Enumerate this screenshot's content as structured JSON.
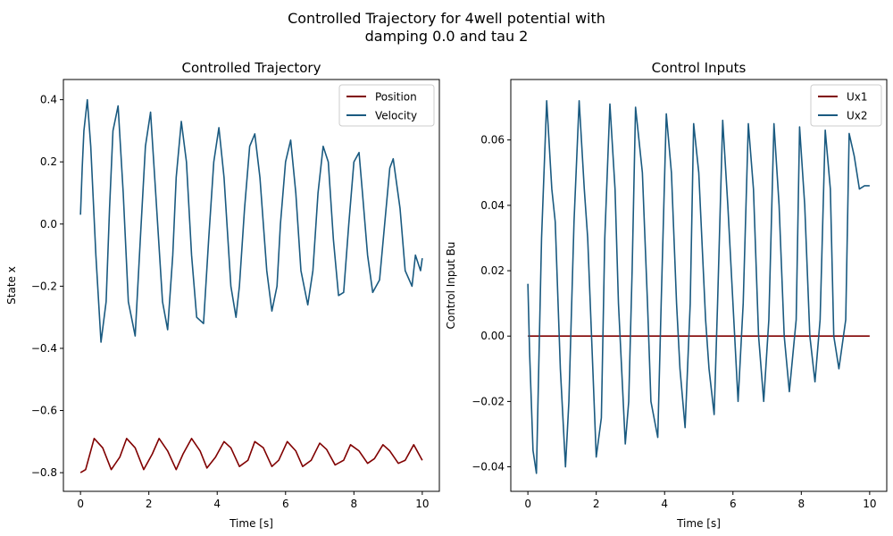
{
  "figure": {
    "suptitle_line1": "Controlled Trajectory for 4well potential with",
    "suptitle_line2": "damping 0.0 and tau 2"
  },
  "chart_data": [
    {
      "type": "line",
      "title": "Controlled Trajectory",
      "xlabel": "Time [s]",
      "ylabel": "State x",
      "xlim": [
        -0.5,
        10.5
      ],
      "ylim": [
        -0.86,
        0.465
      ],
      "xticks": [
        0,
        2,
        4,
        6,
        8,
        10
      ],
      "yticks": [
        -0.8,
        -0.6,
        -0.4,
        -0.2,
        0.0,
        0.2,
        0.4
      ],
      "ytick_labels": [
        "−0.8",
        "−0.6",
        "−0.4",
        "−0.2",
        "0.0",
        "0.2",
        "0.4"
      ],
      "grid": false,
      "legend": "top-right",
      "series": [
        {
          "name": "Position",
          "color": "#800000",
          "x": [
            0,
            0.15,
            0.4,
            0.65,
            0.9,
            1.15,
            1.35,
            1.6,
            1.85,
            2.1,
            2.3,
            2.55,
            2.8,
            3.0,
            3.25,
            3.5,
            3.7,
            3.95,
            4.2,
            4.4,
            4.65,
            4.9,
            5.1,
            5.35,
            5.6,
            5.8,
            6.05,
            6.3,
            6.5,
            6.75,
            7.0,
            7.2,
            7.45,
            7.7,
            7.9,
            8.15,
            8.4,
            8.6,
            8.85,
            9.05,
            9.3,
            9.5,
            9.75,
            10.0
          ],
          "y": [
            -0.8,
            -0.79,
            -0.69,
            -0.72,
            -0.79,
            -0.75,
            -0.69,
            -0.72,
            -0.79,
            -0.74,
            -0.69,
            -0.73,
            -0.79,
            -0.74,
            -0.69,
            -0.73,
            -0.785,
            -0.75,
            -0.7,
            -0.72,
            -0.78,
            -0.76,
            -0.7,
            -0.72,
            -0.78,
            -0.76,
            -0.7,
            -0.73,
            -0.78,
            -0.76,
            -0.705,
            -0.725,
            -0.775,
            -0.76,
            -0.71,
            -0.73,
            -0.77,
            -0.755,
            -0.71,
            -0.73,
            -0.77,
            -0.76,
            -0.71,
            -0.76
          ]
        },
        {
          "name": "Velocity",
          "color": "#1a5a80",
          "x": [
            0,
            0.05,
            0.1,
            0.2,
            0.3,
            0.45,
            0.6,
            0.75,
            0.85,
            0.95,
            1.1,
            1.25,
            1.4,
            1.6,
            1.75,
            1.9,
            2.05,
            2.2,
            2.4,
            2.55,
            2.7,
            2.8,
            2.95,
            3.1,
            3.25,
            3.4,
            3.6,
            3.75,
            3.9,
            4.05,
            4.2,
            4.4,
            4.55,
            4.65,
            4.8,
            4.95,
            5.1,
            5.25,
            5.45,
            5.6,
            5.75,
            5.85,
            6.0,
            6.15,
            6.3,
            6.45,
            6.65,
            6.8,
            6.95,
            7.1,
            7.25,
            7.4,
            7.55,
            7.7,
            7.85,
            8.0,
            8.15,
            8.25,
            8.4,
            8.55,
            8.75,
            8.9,
            9.05,
            9.15,
            9.35,
            9.5,
            9.7,
            9.8,
            9.95,
            10.0
          ],
          "y": [
            0.03,
            0.18,
            0.3,
            0.4,
            0.25,
            -0.1,
            -0.38,
            -0.25,
            0.05,
            0.3,
            0.38,
            0.1,
            -0.25,
            -0.36,
            -0.05,
            0.25,
            0.36,
            0.1,
            -0.25,
            -0.34,
            -0.1,
            0.15,
            0.33,
            0.2,
            -0.1,
            -0.3,
            -0.32,
            -0.05,
            0.2,
            0.31,
            0.15,
            -0.2,
            -0.3,
            -0.2,
            0.05,
            0.25,
            0.29,
            0.15,
            -0.15,
            -0.28,
            -0.2,
            0.0,
            0.2,
            0.27,
            0.1,
            -0.15,
            -0.26,
            -0.15,
            0.1,
            0.25,
            0.2,
            -0.05,
            -0.23,
            -0.22,
            0.0,
            0.2,
            0.23,
            0.1,
            -0.1,
            -0.22,
            -0.18,
            0.0,
            0.18,
            0.21,
            0.05,
            -0.15,
            -0.2,
            -0.1,
            -0.15,
            -0.11
          ]
        }
      ]
    },
    {
      "type": "line",
      "title": "Control Inputs",
      "xlabel": "Time [s]",
      "ylabel": "Control Input Bu",
      "xlim": [
        -0.5,
        10.5
      ],
      "ylim": [
        -0.0475,
        0.0785
      ],
      "xticks": [
        0,
        2,
        4,
        6,
        8,
        10
      ],
      "yticks": [
        -0.04,
        -0.02,
        0.0,
        0.02,
        0.04,
        0.06
      ],
      "ytick_labels": [
        "−0.04",
        "−0.02",
        "0.00",
        "0.02",
        "0.04",
        "0.06"
      ],
      "grid": false,
      "legend": "top-right",
      "series": [
        {
          "name": "Ux1",
          "color": "#800000",
          "x": [
            0,
            10
          ],
          "y": [
            0.0,
            0.0
          ]
        },
        {
          "name": "Ux2",
          "color": "#1a5a80",
          "x": [
            0,
            0.05,
            0.15,
            0.25,
            0.4,
            0.55,
            0.7,
            0.8,
            0.95,
            1.1,
            1.2,
            1.35,
            1.5,
            1.65,
            1.75,
            1.9,
            2.0,
            2.15,
            2.25,
            2.4,
            2.55,
            2.65,
            2.85,
            2.95,
            3.05,
            3.15,
            3.35,
            3.5,
            3.6,
            3.8,
            3.9,
            4.05,
            4.2,
            4.35,
            4.45,
            4.6,
            4.75,
            4.85,
            5.0,
            5.2,
            5.3,
            5.45,
            5.55,
            5.7,
            5.85,
            6.05,
            6.15,
            6.3,
            6.45,
            6.6,
            6.75,
            6.9,
            7.05,
            7.2,
            7.35,
            7.5,
            7.65,
            7.85,
            7.95,
            8.1,
            8.25,
            8.4,
            8.55,
            8.7,
            8.85,
            8.95,
            9.1,
            9.3,
            9.4,
            9.55,
            9.7,
            9.85,
            10.0
          ],
          "y": [
            0.016,
            -0.005,
            -0.035,
            -0.042,
            0.03,
            0.072,
            0.045,
            0.035,
            -0.01,
            -0.04,
            -0.02,
            0.035,
            0.072,
            0.045,
            0.03,
            -0.01,
            -0.037,
            -0.025,
            0.03,
            0.071,
            0.045,
            0.01,
            -0.033,
            -0.02,
            0.02,
            0.07,
            0.05,
            0.01,
            -0.02,
            -0.031,
            0.01,
            0.068,
            0.05,
            0.01,
            -0.01,
            -0.028,
            0.01,
            0.065,
            0.05,
            0.005,
            -0.01,
            -0.024,
            0.01,
            0.066,
            0.04,
            0.0,
            -0.02,
            0.01,
            0.065,
            0.045,
            0.0,
            -0.02,
            0.005,
            0.065,
            0.04,
            0.0,
            -0.017,
            0.005,
            0.064,
            0.04,
            0.0,
            -0.014,
            0.005,
            0.063,
            0.045,
            0.0,
            -0.01,
            0.005,
            0.062,
            0.055,
            0.045,
            0.046,
            0.046
          ]
        }
      ]
    }
  ]
}
